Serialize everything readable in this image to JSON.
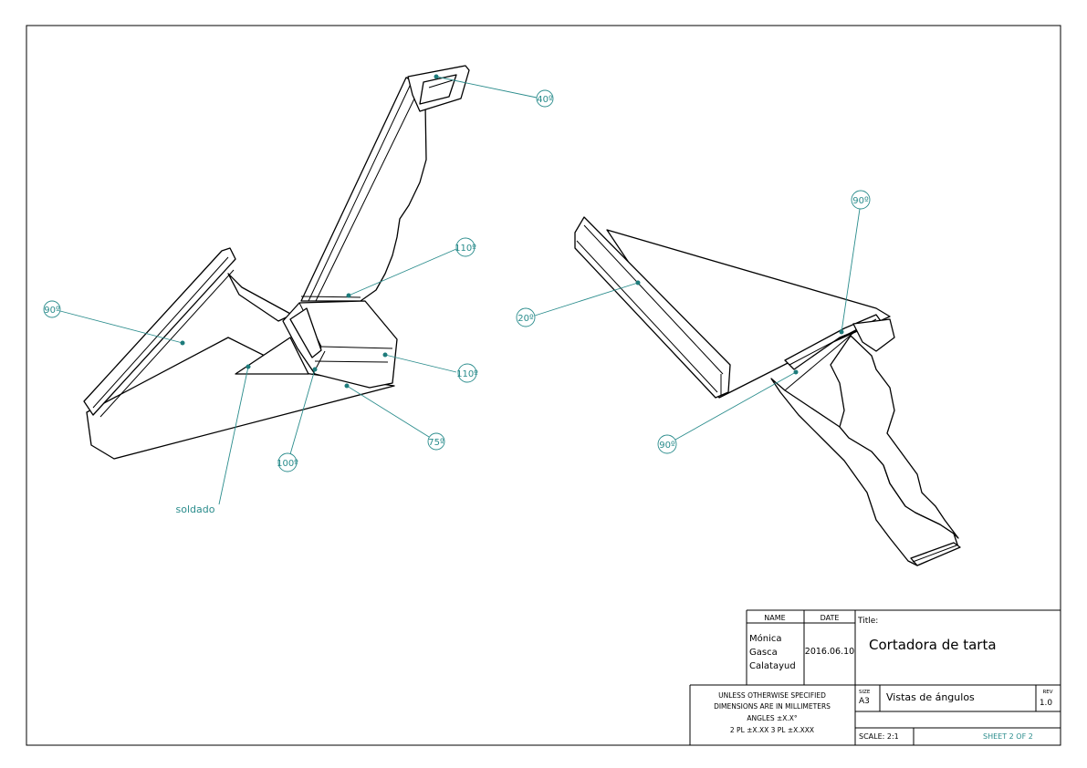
{
  "drawing": {
    "left_view": {
      "callouts": [
        "40º",
        "110º",
        "110º",
        "90º",
        "75º",
        "100º"
      ],
      "note": "soldado"
    },
    "right_view": {
      "callouts": [
        "90º",
        "20º",
        "90º"
      ]
    }
  },
  "title_block": {
    "name_header": "NAME",
    "date_header": "DATE",
    "name_lines": [
      "Mónica",
      "Gasca",
      "Calatayud"
    ],
    "date_value": "2016.06.10",
    "title_label": "Title:",
    "title_value": "Cortadora de tarta",
    "tolerance_lines": [
      "UNLESS OTHERWISE SPECIFIED",
      "DIMENSIONS ARE IN MILLIMETERS",
      "ANGLES ±X.X°",
      "2 PL ±X.XX 3 PL ±X.XXX"
    ],
    "size_label": "SIZE",
    "size_value": "A3",
    "subtitle": "Vistas de ángulos",
    "rev_label": "REV",
    "rev_value": "1.0",
    "scale": "SCALE: 2:1",
    "sheet": "SHEET 2 OF 2"
  },
  "colors": {
    "callout": "#2a8c8c",
    "line": "#000000"
  }
}
